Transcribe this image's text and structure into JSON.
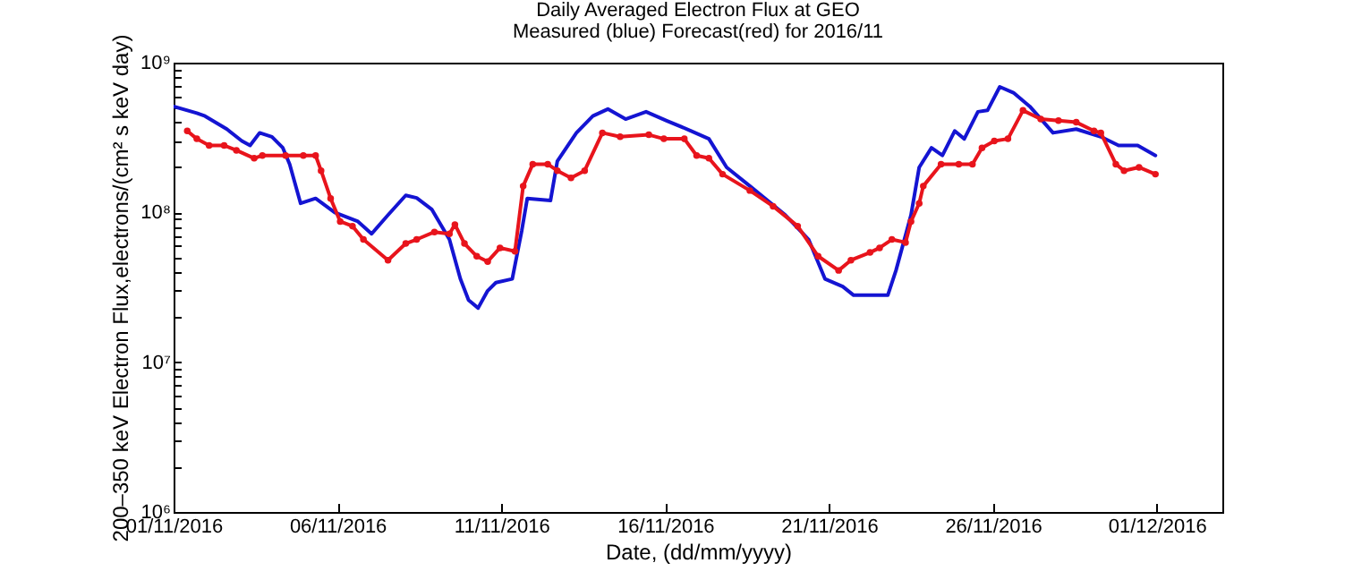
{
  "chart_data": {
    "type": "line",
    "title": "Daily Averaged Electron Flux at GEO",
    "subtitle": "Measured (blue) Forecast(red) for 2016/11",
    "xlabel": "Date, (dd/mm/yyyy)",
    "ylabel": "200–350 keV Electron Flux,electrons/(cm² s keV day)",
    "log": "y",
    "grid": false,
    "xlim": [
      "2016-11-01",
      "2016-12-03"
    ],
    "xticks": [
      {
        "value": "2016-11-01",
        "label": "01/11/2016"
      },
      {
        "value": "2016-11-06",
        "label": "06/11/2016"
      },
      {
        "value": "2016-11-11",
        "label": "11/11/2016"
      },
      {
        "value": "2016-11-16",
        "label": "16/11/2016"
      },
      {
        "value": "2016-11-21",
        "label": "21/11/2016"
      },
      {
        "value": "2016-11-26",
        "label": "26/11/2016"
      },
      {
        "value": "2016-12-01",
        "label": "01/12/2016"
      }
    ],
    "ylim": [
      1000000,
      1000000000
    ],
    "yticks": [
      {
        "value": 1000000,
        "label": "10⁶"
      },
      {
        "value": 2000000,
        "label": null
      },
      {
        "value": 3000000,
        "label": null
      },
      {
        "value": 4000000,
        "label": null
      },
      {
        "value": 5000000,
        "label": null
      },
      {
        "value": 6000000,
        "label": null
      },
      {
        "value": 7000000,
        "label": null
      },
      {
        "value": 8000000,
        "label": null
      },
      {
        "value": 9000000,
        "label": null
      },
      {
        "value": 10000000,
        "label": "10⁷"
      },
      {
        "value": 20000000,
        "label": null
      },
      {
        "value": 30000000,
        "label": null
      },
      {
        "value": 40000000,
        "label": null
      },
      {
        "value": 50000000,
        "label": null
      },
      {
        "value": 60000000,
        "label": null
      },
      {
        "value": 70000000,
        "label": null
      },
      {
        "value": 80000000,
        "label": null
      },
      {
        "value": 90000000,
        "label": null
      },
      {
        "value": 100000000,
        "label": "10⁸"
      },
      {
        "value": 200000000,
        "label": null
      },
      {
        "value": 300000000,
        "label": null
      },
      {
        "value": 400000000,
        "label": null
      },
      {
        "value": 500000000,
        "label": null
      },
      {
        "value": 600000000,
        "label": null
      },
      {
        "value": 700000000,
        "label": null
      },
      {
        "value": 800000000,
        "label": null
      },
      {
        "value": 900000000,
        "label": null
      },
      {
        "value": 1000000000,
        "label": "10⁹"
      }
    ],
    "series": [
      {
        "color": "#1414d2",
        "marker": "none",
        "x": [
          "2016-11-01T00:00",
          "2016-11-01T17:00",
          "2016-11-01T23:00",
          "2016-11-02T15:00",
          "2016-11-03T02:00",
          "2016-11-03T08:00",
          "2016-11-03T15:00",
          "2016-11-04T00:00",
          "2016-11-04T08:00",
          "2016-11-04T13:00",
          "2016-11-04T21:00",
          "2016-11-05T08:00",
          "2016-11-05T22:00",
          "2016-11-06T15:00",
          "2016-11-07T01:00",
          "2016-11-07T13:00",
          "2016-11-08T02:00",
          "2016-11-08T10:00",
          "2016-11-08T21:00",
          "2016-11-09T10:00",
          "2016-11-09T18:00",
          "2016-11-10T00:00",
          "2016-11-10T07:00",
          "2016-11-10T14:00",
          "2016-11-10T20:00",
          "2016-11-11T08:00",
          "2016-11-11T15:00",
          "2016-11-11T19:00",
          "2016-11-12T12:00",
          "2016-11-12T17:00",
          "2016-11-13T07:00",
          "2016-11-13T19:00",
          "2016-11-14T06:00",
          "2016-11-14T19:00",
          "2016-11-15T10:00",
          "2016-11-16T01:00",
          "2016-11-16T19:00",
          "2016-11-17T08:00",
          "2016-11-17T21:00",
          "2016-11-18T14:00",
          "2016-11-19T16:00",
          "2016-11-20T09:00",
          "2016-11-20T21:00",
          "2016-11-21T10:00",
          "2016-11-21T18:00",
          "2016-11-22T19:00",
          "2016-11-23T01:00",
          "2016-11-23T12:00",
          "2016-11-23T18:00",
          "2016-11-24T03:00",
          "2016-11-24T11:00",
          "2016-11-24T20:00",
          "2016-11-25T03:00",
          "2016-11-25T13:00",
          "2016-11-25T20:00",
          "2016-11-26T05:00",
          "2016-11-26T15:00",
          "2016-11-27T03:00",
          "2016-11-27T20:00",
          "2016-11-28T13:00",
          "2016-11-29T07:00",
          "2016-11-29T20:00",
          "2016-11-30T10:00",
          "2016-11-30T23:00"
        ],
        "values": [
          510000000,
          460000000,
          440000000,
          360000000,
          300000000,
          280000000,
          340000000,
          320000000,
          270000000,
          210000000,
          115000000,
          124000000,
          100000000,
          87000000,
          72000000,
          96000000,
          130000000,
          125000000,
          105000000,
          66000000,
          36000000,
          26000000,
          23000000,
          30000000,
          34000000,
          36000000,
          76000000,
          124000000,
          120000000,
          220000000,
          340000000,
          440000000,
          490000000,
          420000000,
          470000000,
          410000000,
          350000000,
          310000000,
          200000000,
          150000000,
          96000000,
          66000000,
          36000000,
          32000000,
          28000000,
          28000000,
          41000000,
          96000000,
          200000000,
          270000000,
          240000000,
          350000000,
          310000000,
          470000000,
          480000000,
          690000000,
          630000000,
          510000000,
          340000000,
          360000000,
          320000000,
          280000000,
          280000000,
          240000000
        ]
      },
      {
        "color": "#e8141c",
        "marker": "circle",
        "x": [
          "2016-11-01T10:00",
          "2016-11-01T17:00",
          "2016-11-02T02:00",
          "2016-11-02T13:00",
          "2016-11-02T22:00",
          "2016-11-03T11:00",
          "2016-11-03T17:00",
          "2016-11-04T10:00",
          "2016-11-04T23:00",
          "2016-11-05T08:00",
          "2016-11-05T12:00",
          "2016-11-05T19:00",
          "2016-11-06T02:00",
          "2016-11-06T11:00",
          "2016-11-06T19:00",
          "2016-11-07T13:00",
          "2016-11-08T02:00",
          "2016-11-08T10:00",
          "2016-11-08T23:00",
          "2016-11-09T10:00",
          "2016-11-09T14:00",
          "2016-11-09T21:00",
          "2016-11-10T06:00",
          "2016-11-10T14:00",
          "2016-11-10T23:00",
          "2016-11-11T10:00",
          "2016-11-11T16:00",
          "2016-11-11T23:00",
          "2016-11-12T10:00",
          "2016-11-12T17:00",
          "2016-11-13T03:00",
          "2016-11-13T13:00",
          "2016-11-14T02:00",
          "2016-11-14T15:00",
          "2016-11-15T12:00",
          "2016-11-15T23:00",
          "2016-11-16T14:00",
          "2016-11-16T23:00",
          "2016-11-17T08:00",
          "2016-11-17T18:00",
          "2016-11-18T14:00",
          "2016-11-19T07:00",
          "2016-11-20T01:00",
          "2016-11-20T16:00",
          "2016-11-21T07:00",
          "2016-11-21T16:00",
          "2016-11-22T06:00",
          "2016-11-22T13:00",
          "2016-11-22T22:00",
          "2016-11-23T08:00",
          "2016-11-23T12:00",
          "2016-11-23T18:00",
          "2016-11-23T21:00",
          "2016-11-24T10:00",
          "2016-11-24T23:00",
          "2016-11-25T09:00",
          "2016-11-25T16:00",
          "2016-11-26T01:00",
          "2016-11-26T11:00",
          "2016-11-26T22:00",
          "2016-11-27T11:00",
          "2016-11-28T00:00",
          "2016-11-28T13:00",
          "2016-11-29T02:00",
          "2016-11-29T07:00",
          "2016-11-29T18:00",
          "2016-11-30T00:00",
          "2016-11-30T11:00",
          "2016-11-30T23:00"
        ],
        "values": [
          350000000,
          310000000,
          280000000,
          280000000,
          260000000,
          230000000,
          240000000,
          240000000,
          240000000,
          240000000,
          190000000,
          124000000,
          87000000,
          81000000,
          66000000,
          48000000,
          62000000,
          66000000,
          74000000,
          72000000,
          83000000,
          62000000,
          51000000,
          47000000,
          58000000,
          55000000,
          150000000,
          210000000,
          210000000,
          190000000,
          170000000,
          190000000,
          340000000,
          320000000,
          330000000,
          310000000,
          310000000,
          240000000,
          230000000,
          180000000,
          140000000,
          110000000,
          81000000,
          51000000,
          41000000,
          48000000,
          54000000,
          58000000,
          66000000,
          63000000,
          87000000,
          115000000,
          150000000,
          210000000,
          210000000,
          210000000,
          270000000,
          300000000,
          310000000,
          480000000,
          420000000,
          410000000,
          400000000,
          350000000,
          340000000,
          210000000,
          190000000,
          200000000,
          180000000
        ]
      }
    ]
  }
}
